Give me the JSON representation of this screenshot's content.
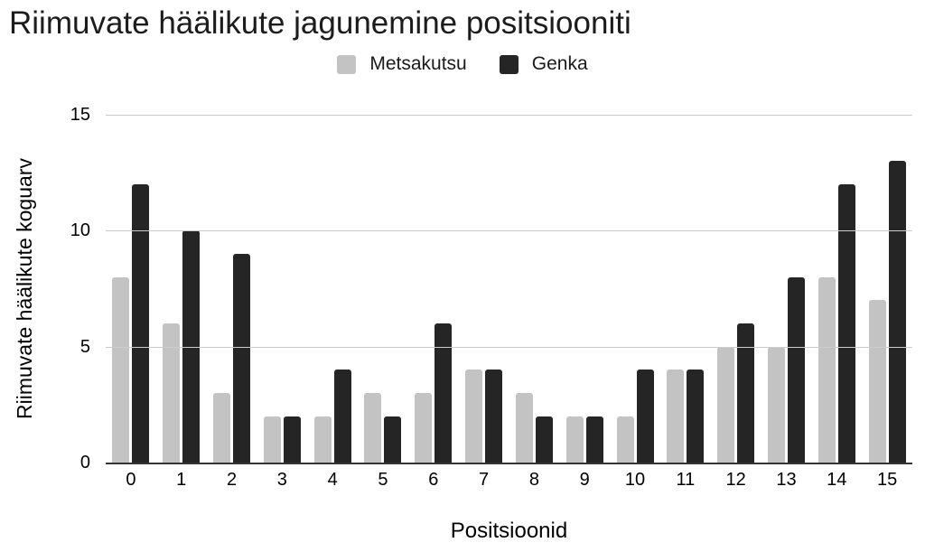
{
  "chart_data": {
    "type": "bar",
    "title": "Riimuvate häälikute jagunemine positsiooniti",
    "xlabel": "Positsioonid",
    "ylabel": "Riimuvate häälikute koguarv",
    "categories": [
      "0",
      "1",
      "2",
      "3",
      "4",
      "5",
      "6",
      "7",
      "8",
      "9",
      "10",
      "11",
      "12",
      "13",
      "14",
      "15"
    ],
    "series": [
      {
        "name": "Metsakutsu",
        "color": "#c3c3c3",
        "values": [
          8,
          6,
          3,
          2,
          2,
          3,
          3,
          4,
          3,
          2,
          2,
          4,
          5,
          5,
          8,
          7
        ]
      },
      {
        "name": "Genka",
        "color": "#252525",
        "values": [
          12,
          10,
          9,
          2,
          4,
          2,
          6,
          4,
          2,
          2,
          4,
          4,
          6,
          8,
          12,
          13
        ]
      }
    ],
    "ylim": [
      0,
      15
    ],
    "yticks": [
      0,
      5,
      10,
      15
    ],
    "grid": true,
    "legend_position": "top",
    "colors": {
      "gridline": "#cccccc",
      "axis_line": "#333333",
      "text": "#1a1a1a"
    }
  }
}
